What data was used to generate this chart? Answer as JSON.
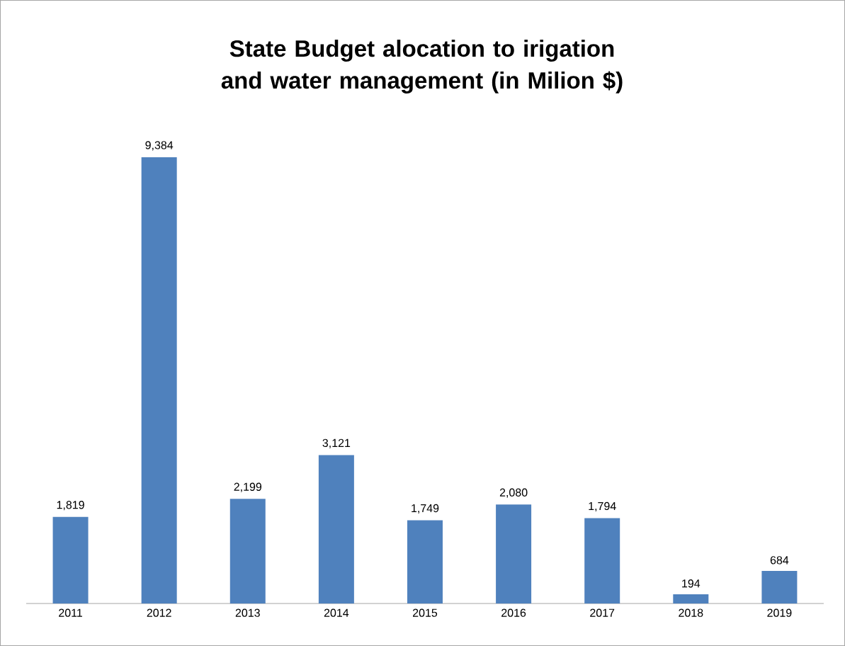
{
  "chart_data": {
    "type": "bar",
    "title": "State Budget alocation to irigation and water management (in Milion $)",
    "categories": [
      "2011",
      "2012",
      "2013",
      "2014",
      "2015",
      "2016",
      "2017",
      "2018",
      "2019"
    ],
    "values": [
      1819,
      9384,
      2199,
      3121,
      1749,
      2080,
      1794,
      194,
      684
    ],
    "value_labels": [
      "1,819",
      "9,384",
      "2,199",
      "3,121",
      "1,749",
      "2,080",
      "1,794",
      "194",
      "684"
    ],
    "color": "#4f81bd"
  }
}
